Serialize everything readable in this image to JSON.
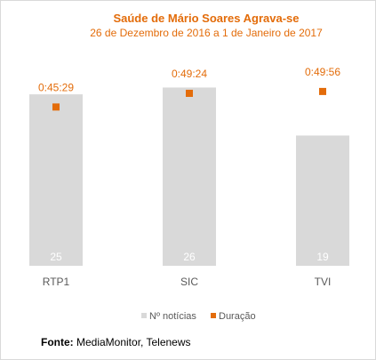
{
  "chart_data": {
    "type": "bar",
    "title": "Saúde de Mário Soares Agrava-se",
    "subtitle": "26 de Dezembro de 2016 a 1 de Janeiro de 2017",
    "categories": [
      "RTP1",
      "SIC",
      "TVI"
    ],
    "series": [
      {
        "name": "Nº notícias",
        "values": [
          25,
          26,
          19
        ],
        "color": "#d9d9d9"
      },
      {
        "name": "Duração",
        "values": [
          "0:45:29",
          "0:49:24",
          "0:49:56"
        ],
        "seconds": [
          2729,
          2964,
          2996
        ],
        "color": "#e36c0a"
      }
    ],
    "ylim_count": [
      0,
      28
    ],
    "ylim_duration_seconds": [
      0,
      3300
    ],
    "legend": "bottom",
    "grid": false
  },
  "source": {
    "label": "Fonte:",
    "text": " MediaMonitor, Telenews"
  }
}
